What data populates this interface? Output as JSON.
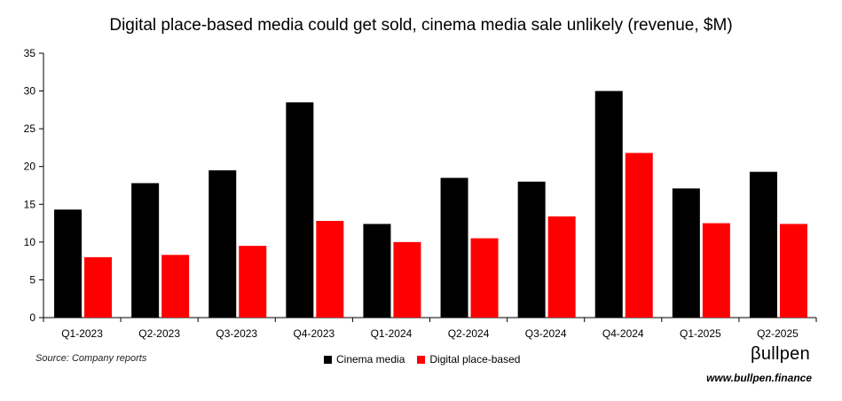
{
  "title": "Digital place-based media could get sold, cinema media sale unlikely (revenue, $M)",
  "source": "Source: Company reports",
  "brand": "βullpen",
  "url": "www.bullpen.finance",
  "colors": {
    "cinema": "#000000",
    "digital": "#ff0000"
  },
  "chart_data": {
    "type": "bar",
    "title": "Digital place-based media could get sold, cinema media sale unlikely (revenue, $M)",
    "categories": [
      "Q1-2023",
      "Q2-2023",
      "Q3-2023",
      "Q4-2023",
      "Q1-2024",
      "Q2-2024",
      "Q3-2024",
      "Q4-2024",
      "Q1-2025",
      "Q2-2025"
    ],
    "series": [
      {
        "name": "Cinema media",
        "values": [
          14.3,
          17.8,
          19.5,
          28.5,
          12.4,
          18.5,
          18.0,
          30.0,
          17.1,
          19.3
        ]
      },
      {
        "name": "Digital place-based",
        "values": [
          8.0,
          8.3,
          9.5,
          12.8,
          10.0,
          10.5,
          13.4,
          21.8,
          12.5,
          12.4
        ]
      }
    ],
    "ylim": [
      0,
      35
    ],
    "yticks": [
      0,
      5,
      10,
      15,
      20,
      25,
      30,
      35
    ],
    "grid": false,
    "legend_position": "bottom"
  }
}
